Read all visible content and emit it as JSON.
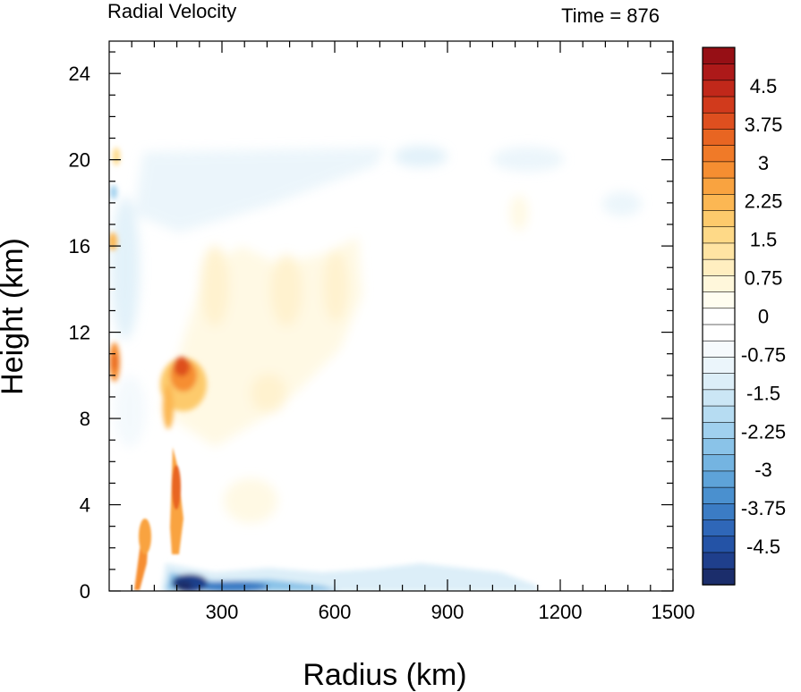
{
  "chart_data": {
    "type": "heatmap",
    "title_left": "Radial Velocity",
    "title_right": "Time = 876",
    "xlabel": "Radius (km)",
    "ylabel": "Height (km)",
    "xlim": [
      0,
      1500
    ],
    "ylim": [
      0,
      25.5
    ],
    "x_ticks": [
      "300",
      "600",
      "900",
      "1200",
      "1500"
    ],
    "x_tick_values": [
      300,
      600,
      900,
      1200,
      1500
    ],
    "y_ticks": [
      "0",
      "4",
      "8",
      "12",
      "16",
      "20",
      "24"
    ],
    "y_tick_values": [
      0,
      4,
      8,
      12,
      16,
      20,
      24
    ],
    "colorbar": {
      "min": -5.25,
      "max": 5.25,
      "step": 0.25,
      "tick_labels": [
        "4.5",
        "3.75",
        "3",
        "2.25",
        "1.5",
        "0.75",
        "0",
        "-0.75",
        "-1.5",
        "-2.25",
        "-3",
        "-3.75",
        "-4.5"
      ],
      "tick_values": [
        4.5,
        3.75,
        3,
        2.25,
        1.5,
        0.75,
        0,
        -0.75,
        -1.5,
        -2.25,
        -3,
        -3.75,
        -4.5
      ],
      "colors": [
        "#1b2d6b",
        "#1f3f8c",
        "#2453a6",
        "#2f67b8",
        "#3b7cc4",
        "#4a90cf",
        "#5ea3d9",
        "#74b4e1",
        "#8ac3e8",
        "#a0d0ee",
        "#b6dcf2",
        "#cbe6f5",
        "#dceef8",
        "#ebf5fb",
        "#f6fafd",
        "#ffffff",
        "#ffffff",
        "#fffdf0",
        "#fff7db",
        "#ffeec0",
        "#ffe4a3",
        "#fed987",
        "#fdca6c",
        "#fcb753",
        "#f9a340",
        "#f68e31",
        "#f07a28",
        "#e86522",
        "#de4f1f",
        "#d13a1c",
        "#c1281a",
        "#ad1919",
        "#960f15"
      ]
    },
    "features": [
      {
        "name": "low-level outflow core",
        "r": 230,
        "z": 0.35,
        "v": -5.0
      },
      {
        "name": "low-level outflow band",
        "r": 400,
        "z": 0.6,
        "v": -2.5
      },
      {
        "name": "eyewall inflow",
        "r": 215,
        "z": 9.8,
        "v": 4.0
      },
      {
        "name": "inner inflow streak",
        "r": 100,
        "z": 2.8,
        "v": 3.5
      },
      {
        "name": "inner core streak",
        "r": 190,
        "z": 3.8,
        "v": 3.0
      },
      {
        "name": "inner boundary max",
        "r": 18,
        "z": 10.5,
        "v": 2.8
      },
      {
        "name": "mid-level warm band",
        "r": 420,
        "z": 11.5,
        "v": 0.9
      },
      {
        "name": "upper outflow layer",
        "r": 700,
        "z": 19.5,
        "v": -0.6
      }
    ]
  }
}
